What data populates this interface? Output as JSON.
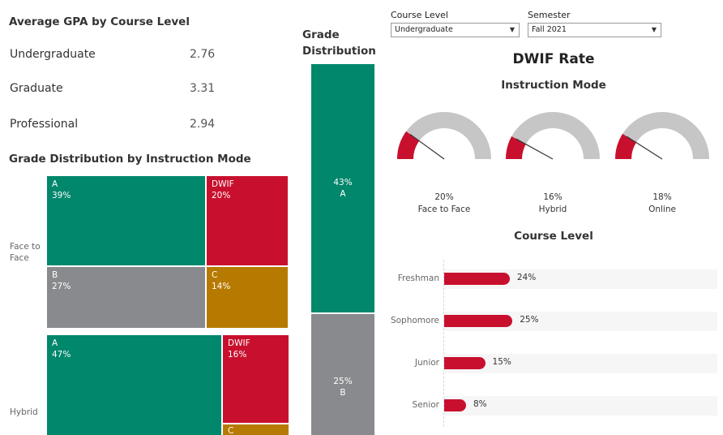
{
  "gpa": {
    "title": "Average GPA by Course Level",
    "rows": [
      {
        "label": "Undergraduate",
        "value": "2.76"
      },
      {
        "label": "Graduate",
        "value": "3.31"
      },
      {
        "label": "Professional",
        "value": "2.94"
      }
    ]
  },
  "mode_dist": {
    "title": "Grade Distribution by Instruction Mode",
    "face_label_1": "Face to",
    "face_label_2": "Face",
    "hybrid_label": "Hybrid",
    "face": [
      {
        "grade": "A",
        "pct": "39%"
      },
      {
        "grade": "DWIF",
        "pct": "20%"
      },
      {
        "grade": "B",
        "pct": "27%"
      },
      {
        "grade": "C",
        "pct": "14%"
      }
    ],
    "hybrid": [
      {
        "grade": "A",
        "pct": "47%"
      },
      {
        "grade": "DWIF",
        "pct": "16%"
      },
      {
        "grade": "C",
        "pct": ""
      }
    ]
  },
  "grade_dist": {
    "title_1": "Grade",
    "title_2": "Distribution",
    "segments": [
      {
        "pct": "43%",
        "grade": "A"
      },
      {
        "pct": "25%",
        "grade": "B"
      }
    ]
  },
  "filters": {
    "course_level_label": "Course Level",
    "course_level_value": "Undergraduate",
    "semester_label": "Semester",
    "semester_value": "Fall 2021"
  },
  "dwif": {
    "title": "DWIF Rate",
    "mode_title": "Instruction Mode",
    "level_title": "Course Level",
    "gauges": [
      {
        "pct": "20%",
        "label": "Face to Face",
        "value": 20
      },
      {
        "pct": "16%",
        "label": "Hybrid",
        "value": 16
      },
      {
        "pct": "18%",
        "label": "Online",
        "value": 18
      }
    ]
  },
  "chart_data": [
    {
      "type": "table",
      "title": "Average GPA by Course Level",
      "categories": [
        "Undergraduate",
        "Graduate",
        "Professional"
      ],
      "values": [
        2.76,
        3.31,
        2.94
      ]
    },
    {
      "type": "heatmap",
      "title": "Grade Distribution by Instruction Mode",
      "series": [
        {
          "name": "Face to Face",
          "categories": [
            "A",
            "DWIF",
            "B",
            "C"
          ],
          "values": [
            39,
            20,
            27,
            14
          ]
        },
        {
          "name": "Hybrid",
          "categories": [
            "A",
            "DWIF",
            "C"
          ],
          "values": [
            47,
            16,
            null
          ]
        }
      ]
    },
    {
      "type": "bar",
      "title": "Grade Distribution",
      "categories": [
        "A",
        "B"
      ],
      "values": [
        43,
        25
      ]
    },
    {
      "type": "pie",
      "title": "Instruction Mode",
      "categories": [
        "Face to Face",
        "Hybrid",
        "Online"
      ],
      "values": [
        20,
        16,
        18
      ]
    },
    {
      "type": "bar",
      "title": "Course Level",
      "categories": [
        "Freshman",
        "Sophomore",
        "Junior",
        "Senior"
      ],
      "values": [
        24,
        25,
        15,
        8
      ],
      "labels": [
        "24%",
        "25%",
        "15%",
        "8%"
      ],
      "xlim": [
        0,
        100
      ]
    }
  ],
  "colors": {
    "green": "#00876c",
    "red": "#c8102e",
    "gray": "#898a8d",
    "gold": "#b77a00",
    "gauge_track": "#c6c6c6"
  }
}
